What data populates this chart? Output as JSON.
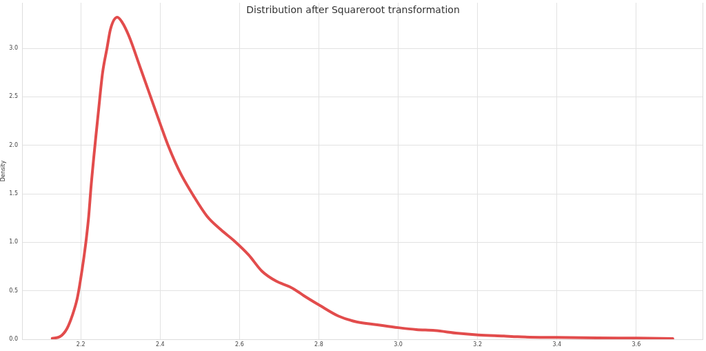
{
  "chart_data": {
    "type": "line",
    "title": "Distribution after Squareroot transformation",
    "ylabel": "Density",
    "x": [
      2.128,
      2.147,
      2.165,
      2.179,
      2.191,
      2.2,
      2.208,
      2.214,
      2.22,
      2.226,
      2.245,
      2.255,
      2.266,
      2.275,
      2.292,
      2.304,
      2.321,
      2.35,
      2.37,
      2.402,
      2.42,
      2.449,
      2.484,
      2.518,
      2.553,
      2.588,
      2.623,
      2.657,
      2.692,
      2.727,
      2.744,
      2.762,
      2.802,
      2.849,
      2.895,
      2.947,
      3.0,
      3.046,
      3.092,
      3.15,
      3.202,
      3.266,
      3.301,
      3.4,
      3.504,
      3.602,
      3.692
    ],
    "values": [
      0.01,
      0.026,
      0.109,
      0.25,
      0.42,
      0.63,
      0.85,
      1.04,
      1.27,
      1.58,
      2.37,
      2.75,
      3.0,
      3.2,
      3.32,
      3.27,
      3.13,
      2.8,
      2.57,
      2.2,
      2.0,
      1.73,
      1.48,
      1.27,
      1.13,
      1.01,
      0.87,
      0.7,
      0.6,
      0.54,
      0.5,
      0.45,
      0.35,
      0.24,
      0.18,
      0.15,
      0.12,
      0.1,
      0.09,
      0.062,
      0.045,
      0.033,
      0.026,
      0.019,
      0.014,
      0.012,
      0.008
    ],
    "color": "#e24c4c",
    "xlim": [
      2.052,
      3.767
    ],
    "ylim": [
      0,
      3.47
    ],
    "xticks": [
      2.2,
      2.4,
      2.6,
      2.8,
      {
        "value": 3,
        "label": "3.0"
      },
      3.2,
      3.4,
      3.6
    ],
    "yticks": [
      {
        "value": 0,
        "label": "0.0"
      },
      0.5,
      {
        "value": 1,
        "label": "1.0"
      },
      1.5,
      {
        "value": 2,
        "label": "2.0"
      },
      2.5,
      {
        "value": 3,
        "label": "3.0"
      }
    ],
    "grid": true
  }
}
